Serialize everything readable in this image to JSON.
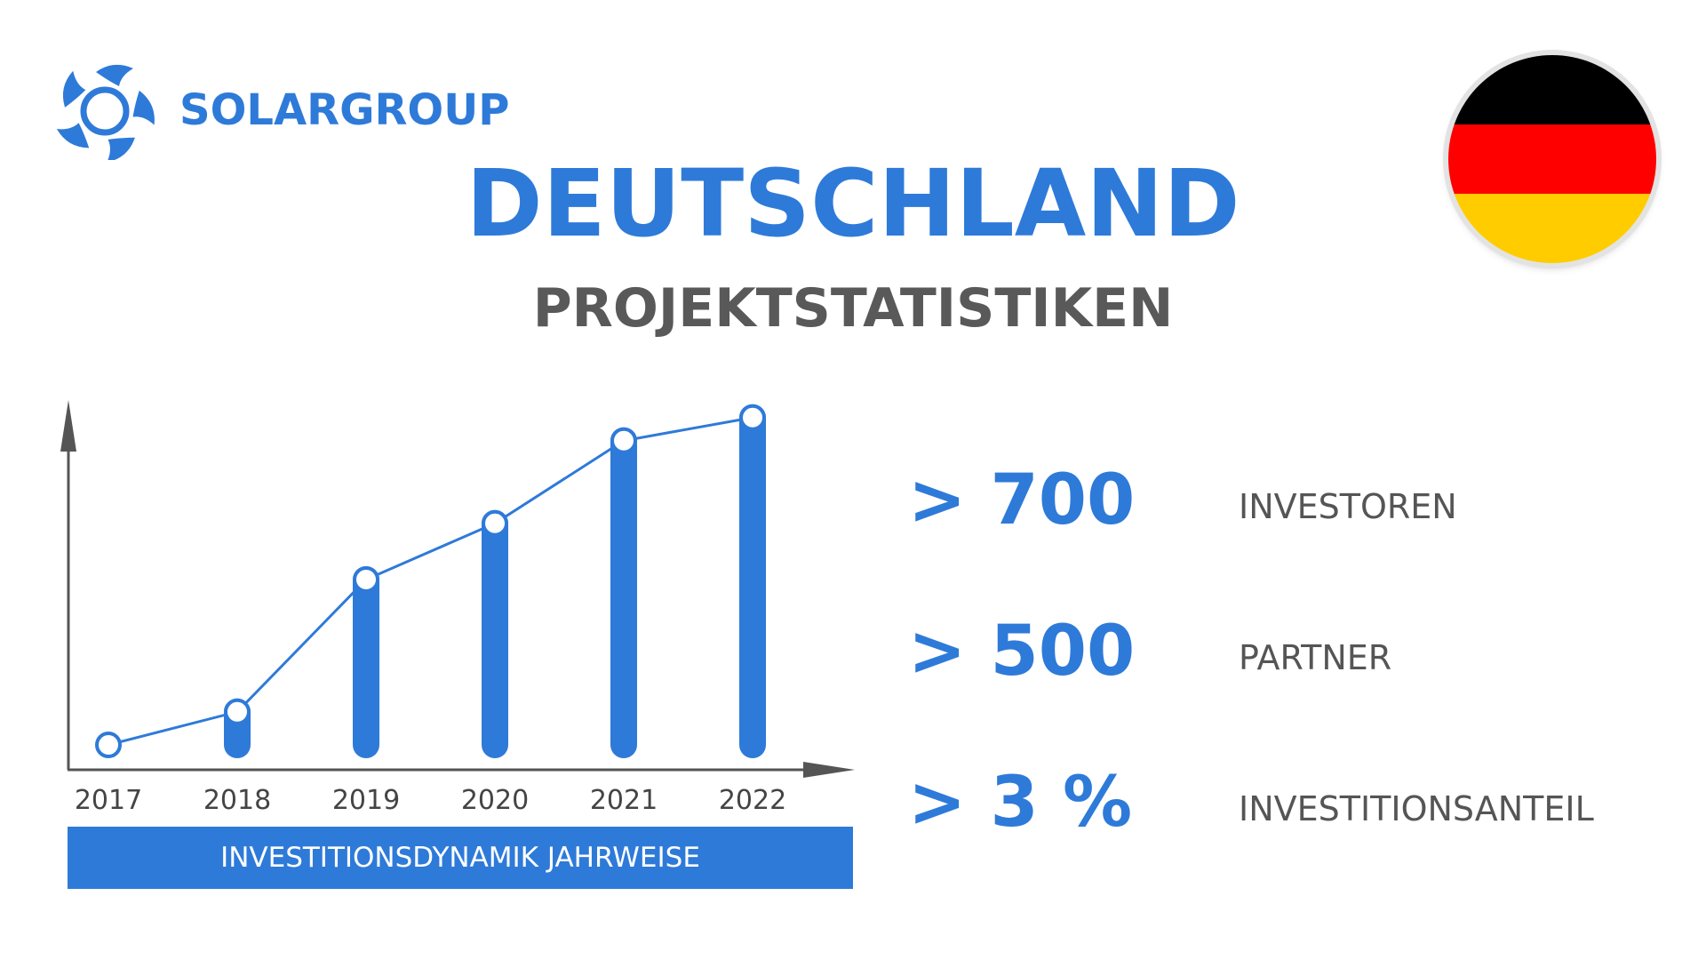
{
  "brand": {
    "name": "SOLARGROUP",
    "logo_icon": "solar-swirl-logo-icon"
  },
  "header": {
    "title": "DEUTSCHLAND",
    "subtitle": "PROJEKTSTATISTIKEN",
    "flag_icon": "germany-flag-icon",
    "flag_colors": [
      "#000000",
      "#ff0000",
      "#ffcc00"
    ]
  },
  "colors": {
    "accent": "#2e7ad9",
    "text_gray": "#555555",
    "axis": "#555555"
  },
  "chart_data": {
    "type": "bar",
    "categories": [
      "2017",
      "2018",
      "2019",
      "2020",
      "2021",
      "2022"
    ],
    "values": [
      0,
      1,
      5,
      6.7,
      9.2,
      9.9
    ],
    "line_values": [
      0,
      1,
      5,
      6.7,
      9.2,
      9.9
    ],
    "ylim": [
      0,
      10
    ],
    "xlabel": "INVESTITIONSDYNAMIK JAHRWEISE",
    "ylabel": "",
    "grid": false,
    "legend": "none"
  },
  "stats": [
    {
      "value": "> 700",
      "label": "INVESTOREN"
    },
    {
      "value": "> 500",
      "label": "PARTNER"
    },
    {
      "value": "> 3 %",
      "label": "INVESTITIONSANTEIL"
    }
  ]
}
